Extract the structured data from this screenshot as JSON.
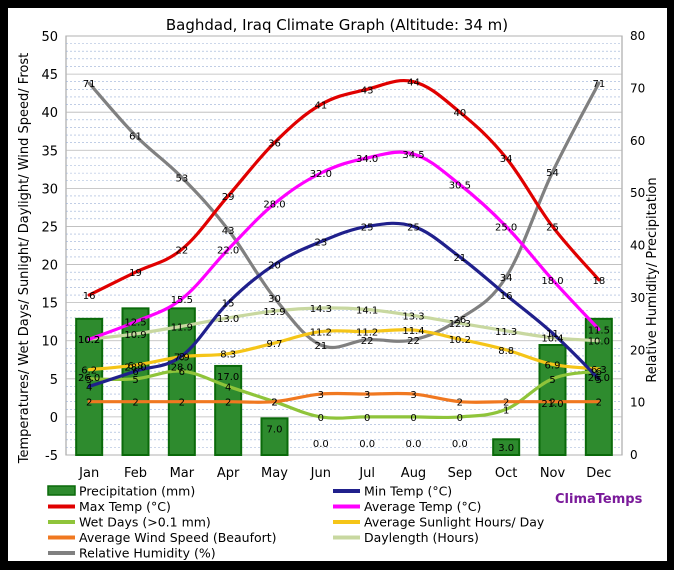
{
  "chart_data": {
    "type": "bar+line",
    "title": "Baghdad, Iraq Climate Graph (Altitude: 34 m)",
    "ylabel_left": "Temperatures/ Wet Days/ Sunlight/ Daylight/ Wind Speed/ Frost",
    "ylabel_right": "Relative Humidity/ Precipitation",
    "ylim_left": [
      -5,
      50
    ],
    "ylim_right": [
      0,
      80
    ],
    "yticks_left": [
      "-5",
      "0",
      "5",
      "10",
      "15",
      "20",
      "25",
      "30",
      "35",
      "40",
      "45",
      "50"
    ],
    "yticks_right": [
      "0",
      "10",
      "20",
      "30",
      "40",
      "50",
      "60",
      "70",
      "80"
    ],
    "categories": [
      "Jan",
      "Feb",
      "Mar",
      "Apr",
      "May",
      "Jun",
      "Jul",
      "Aug",
      "Sep",
      "Oct",
      "Nov",
      "Dec"
    ],
    "grid": true,
    "watermark": "ClimaTemps",
    "series": [
      {
        "name": "Precipitation (mm)",
        "type": "bar",
        "axis": "right",
        "color": "#2e8b2e",
        "values": [
          26.0,
          28.0,
          28.0,
          17.0,
          7.0,
          0.0,
          0.0,
          0.0,
          0.0,
          3.0,
          21.0,
          26.0
        ]
      },
      {
        "name": "Min Temp (°C)",
        "type": "line",
        "axis": "left",
        "color": "#20208c",
        "values": [
          4,
          6,
          8,
          15,
          20,
          23,
          25,
          25,
          21,
          16,
          11,
          5
        ]
      },
      {
        "name": "Max Temp (°C)",
        "type": "line",
        "axis": "left",
        "color": "#e00000",
        "values": [
          16,
          19,
          22,
          29,
          36,
          41,
          43,
          44,
          40,
          34,
          25,
          18
        ]
      },
      {
        "name": "Average Temp (°C)",
        "type": "line",
        "axis": "left",
        "color": "#ff00ff",
        "values": [
          10.2,
          12.5,
          15.5,
          22.0,
          28.0,
          32.0,
          34.0,
          34.5,
          30.5,
          25.0,
          18.0,
          11.5
        ]
      },
      {
        "name": "Wet Days (>0.1 mm)",
        "type": "line",
        "axis": "left",
        "color": "#8fc43a",
        "values": [
          5,
          5,
          6,
          4,
          2,
          0,
          0,
          0,
          0,
          1,
          5,
          6
        ]
      },
      {
        "name": "Average Sunlight Hours/ Day",
        "type": "line",
        "axis": "left",
        "color": "#f5c518",
        "values": [
          6.2,
          6.8,
          7.9,
          8.3,
          9.7,
          11.2,
          11.2,
          11.4,
          10.2,
          8.8,
          6.9,
          6.3
        ]
      },
      {
        "name": "Average Wind Speed (Beaufort)",
        "type": "line",
        "axis": "left",
        "color": "#f07820",
        "values": [
          2,
          2,
          2,
          2,
          2,
          3,
          3,
          3,
          2,
          2,
          2,
          2
        ]
      },
      {
        "name": "Daylength (Hours)",
        "type": "line",
        "axis": "left",
        "color": "#c8d8a0",
        "values": [
          10.2,
          10.9,
          11.9,
          13.0,
          13.9,
          14.3,
          14.1,
          13.3,
          12.3,
          11.3,
          10.4,
          10.0
        ]
      },
      {
        "name": "Relative Humidity (%)",
        "type": "line",
        "axis": "right",
        "color": "#808080",
        "values": [
          71,
          61,
          53,
          43,
          30,
          21,
          22,
          22,
          26,
          34,
          54,
          71
        ]
      }
    ]
  }
}
